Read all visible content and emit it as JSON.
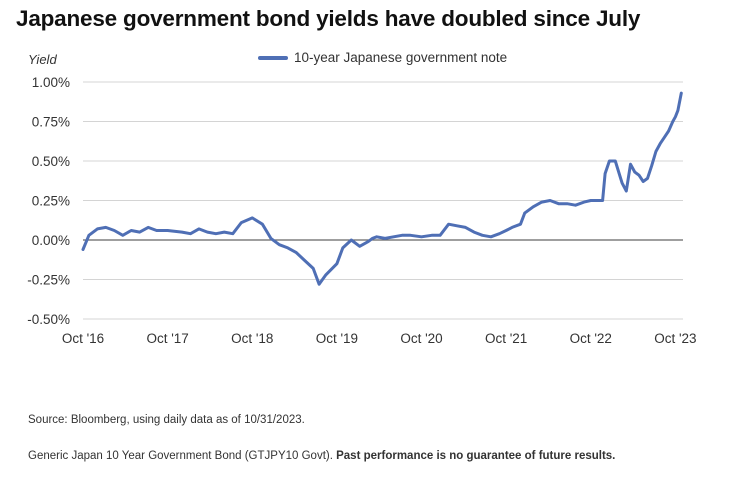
{
  "title": "Japanese government bond yields have doubled since July",
  "source": "Source: Bloomberg, using daily data as of 10/31/2023.",
  "footnote_plain": "Generic Japan 10 Year Government Bond (GTJPY10 Govt). ",
  "footnote_bold": "Past performance is no guarantee of future results.",
  "colors": {
    "series": "#4f6fb5",
    "grid": "#d4d4d4",
    "zero": "#666666"
  },
  "chart_data": {
    "type": "line",
    "ylabel": "Yield",
    "ylim": [
      -0.5,
      1.0
    ],
    "yticks": [
      1.0,
      0.75,
      0.5,
      0.25,
      0.0,
      -0.25,
      -0.5
    ],
    "ytick_labels": [
      "1.00%",
      "0.75%",
      "0.50%",
      "0.25%",
      "0.00%",
      "-0.25%",
      "-0.50%"
    ],
    "xlim": [
      2016.83,
      2023.92
    ],
    "xticks": [
      2016.83,
      2017.83,
      2018.83,
      2019.83,
      2020.83,
      2021.83,
      2022.83,
      2023.83
    ],
    "xtick_labels": [
      "Oct '16",
      "Oct '17",
      "Oct '18",
      "Oct '19",
      "Oct '20",
      "Oct '21",
      "Oct '22",
      "Oct '23"
    ],
    "legend_position": "top-center",
    "grid": "horizontal",
    "series": [
      {
        "name": "10-year Japanese government note",
        "x": [
          2016.83,
          2016.9,
          2017.0,
          2017.1,
          2017.2,
          2017.3,
          2017.4,
          2017.5,
          2017.6,
          2017.7,
          2017.83,
          2018.0,
          2018.1,
          2018.2,
          2018.3,
          2018.4,
          2018.5,
          2018.6,
          2018.7,
          2018.83,
          2018.95,
          2019.05,
          2019.15,
          2019.25,
          2019.35,
          2019.45,
          2019.55,
          2019.62,
          2019.7,
          2019.83,
          2019.9,
          2020.0,
          2020.1,
          2020.2,
          2020.25,
          2020.3,
          2020.4,
          2020.5,
          2020.6,
          2020.7,
          2020.83,
          2020.95,
          2021.05,
          2021.15,
          2021.25,
          2021.35,
          2021.45,
          2021.55,
          2021.65,
          2021.75,
          2021.83,
          2021.9,
          2022.0,
          2022.05,
          2022.15,
          2022.25,
          2022.35,
          2022.45,
          2022.55,
          2022.65,
          2022.75,
          2022.83,
          2022.92,
          2022.97,
          2023.0,
          2023.05,
          2023.12,
          2023.2,
          2023.25,
          2023.3,
          2023.35,
          2023.4,
          2023.45,
          2023.5,
          2023.55,
          2023.6,
          2023.65,
          2023.7,
          2023.75,
          2023.8,
          2023.83,
          2023.86,
          2023.9
        ],
        "values": [
          -0.06,
          0.03,
          0.07,
          0.08,
          0.06,
          0.03,
          0.06,
          0.05,
          0.08,
          0.06,
          0.06,
          0.05,
          0.04,
          0.07,
          0.05,
          0.04,
          0.05,
          0.04,
          0.11,
          0.14,
          0.1,
          0.01,
          -0.03,
          -0.05,
          -0.08,
          -0.13,
          -0.18,
          -0.28,
          -0.22,
          -0.15,
          -0.05,
          0.0,
          -0.04,
          -0.01,
          0.01,
          0.02,
          0.01,
          0.02,
          0.03,
          0.03,
          0.02,
          0.03,
          0.03,
          0.1,
          0.09,
          0.08,
          0.05,
          0.03,
          0.02,
          0.04,
          0.06,
          0.08,
          0.1,
          0.17,
          0.21,
          0.24,
          0.25,
          0.23,
          0.23,
          0.22,
          0.24,
          0.25,
          0.25,
          0.25,
          0.42,
          0.5,
          0.5,
          0.36,
          0.31,
          0.48,
          0.43,
          0.41,
          0.37,
          0.39,
          0.47,
          0.56,
          0.61,
          0.65,
          0.69,
          0.75,
          0.78,
          0.82,
          0.93
        ]
      }
    ]
  }
}
